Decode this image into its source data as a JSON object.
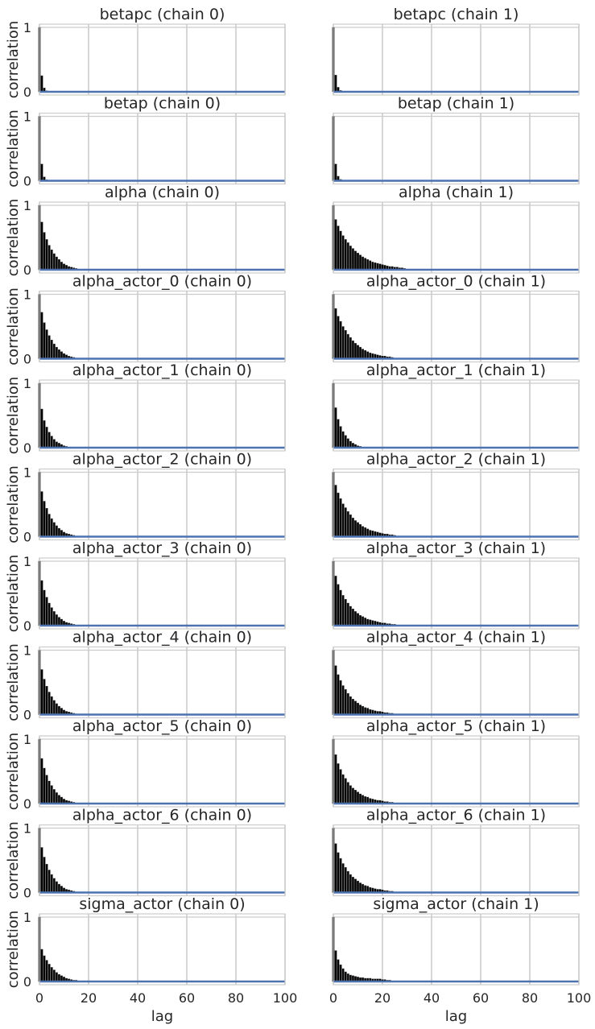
{
  "chart_data": {
    "type": "bar",
    "figure_kind": "autocorrelation grid",
    "rows": 11,
    "cols": 2,
    "xlabel": "lag",
    "ylabel": "correlation",
    "xlim": [
      0,
      100
    ],
    "ylim": [
      -0.05,
      1.05
    ],
    "xticks": [
      "0",
      "20",
      "40",
      "60",
      "80",
      "100"
    ],
    "yticks": [
      "0",
      "1"
    ],
    "grid": true,
    "bar_color": "#000000",
    "zero_line_color": "#4c72b0",
    "panels": [
      {
        "title": "betapc (chain 0)",
        "values": [
          1.0,
          0.25,
          0.06,
          0.015
        ]
      },
      {
        "title": "betapc (chain 1)",
        "values": [
          1.0,
          0.26,
          0.07,
          0.02
        ]
      },
      {
        "title": "betap (chain 0)",
        "values": [
          1.0,
          0.26,
          0.06,
          0.015
        ]
      },
      {
        "title": "betap (chain 1)",
        "values": [
          1.0,
          0.26,
          0.07,
          0.02
        ]
      },
      {
        "title": "alpha (chain 0)",
        "values": [
          1.0,
          0.74,
          0.58,
          0.47,
          0.38,
          0.31,
          0.25,
          0.2,
          0.16,
          0.12,
          0.09,
          0.07,
          0.05,
          0.04,
          0.03,
          0.02,
          0.01,
          0.01
        ]
      },
      {
        "title": "alpha (chain 1)",
        "values": [
          1.0,
          0.78,
          0.68,
          0.6,
          0.53,
          0.47,
          0.42,
          0.37,
          0.33,
          0.29,
          0.26,
          0.23,
          0.2,
          0.18,
          0.16,
          0.14,
          0.12,
          0.11,
          0.1,
          0.09,
          0.08,
          0.07,
          0.06,
          0.05,
          0.05,
          0.04,
          0.04,
          0.03,
          0.03,
          0.02
        ]
      },
      {
        "title": "alpha_actor_0 (chain 0)",
        "values": [
          1.0,
          0.72,
          0.56,
          0.45,
          0.36,
          0.29,
          0.23,
          0.18,
          0.14,
          0.11,
          0.08,
          0.06,
          0.04,
          0.03,
          0.02,
          0.01
        ]
      },
      {
        "title": "alpha_actor_0 (chain 1)",
        "values": [
          1.0,
          0.78,
          0.66,
          0.58,
          0.5,
          0.44,
          0.38,
          0.33,
          0.28,
          0.24,
          0.21,
          0.18,
          0.15,
          0.13,
          0.11,
          0.09,
          0.08,
          0.07,
          0.06,
          0.05,
          0.04,
          0.04,
          0.03,
          0.03,
          0.02
        ]
      },
      {
        "title": "alpha_actor_1 (chain 0)",
        "values": [
          1.0,
          0.6,
          0.42,
          0.32,
          0.24,
          0.18,
          0.13,
          0.09,
          0.07,
          0.05,
          0.03,
          0.02,
          0.01
        ]
      },
      {
        "title": "alpha_actor_1 (chain 1)",
        "values": [
          1.0,
          0.62,
          0.44,
          0.33,
          0.25,
          0.19,
          0.14,
          0.1,
          0.07,
          0.05,
          0.03,
          0.02,
          0.01
        ]
      },
      {
        "title": "alpha_actor_2 (chain 0)",
        "values": [
          1.0,
          0.7,
          0.55,
          0.44,
          0.35,
          0.28,
          0.22,
          0.17,
          0.13,
          0.1,
          0.07,
          0.05,
          0.04,
          0.03,
          0.02,
          0.01
        ]
      },
      {
        "title": "alpha_actor_2 (chain 1)",
        "values": [
          1.0,
          0.8,
          0.68,
          0.59,
          0.51,
          0.45,
          0.39,
          0.34,
          0.29,
          0.25,
          0.22,
          0.19,
          0.16,
          0.14,
          0.12,
          0.1,
          0.09,
          0.08,
          0.07,
          0.06,
          0.05,
          0.04,
          0.04,
          0.03,
          0.03,
          0.02
        ]
      },
      {
        "title": "alpha_actor_3 (chain 0)",
        "values": [
          1.0,
          0.7,
          0.55,
          0.44,
          0.35,
          0.28,
          0.22,
          0.17,
          0.13,
          0.1,
          0.07,
          0.05,
          0.04,
          0.03,
          0.02,
          0.01
        ]
      },
      {
        "title": "alpha_actor_3 (chain 1)",
        "values": [
          1.0,
          0.77,
          0.64,
          0.55,
          0.47,
          0.41,
          0.35,
          0.3,
          0.26,
          0.22,
          0.19,
          0.16,
          0.14,
          0.12,
          0.1,
          0.09,
          0.08,
          0.07,
          0.06,
          0.05,
          0.04,
          0.04,
          0.03,
          0.03,
          0.02,
          0.02
        ]
      },
      {
        "title": "alpha_actor_4 (chain 0)",
        "values": [
          1.0,
          0.7,
          0.55,
          0.44,
          0.35,
          0.28,
          0.22,
          0.17,
          0.13,
          0.1,
          0.07,
          0.05,
          0.04,
          0.03,
          0.02,
          0.01
        ]
      },
      {
        "title": "alpha_actor_4 (chain 1)",
        "values": [
          1.0,
          0.76,
          0.62,
          0.53,
          0.45,
          0.39,
          0.33,
          0.28,
          0.24,
          0.21,
          0.18,
          0.15,
          0.13,
          0.11,
          0.1,
          0.08,
          0.07,
          0.06,
          0.05,
          0.05,
          0.04,
          0.03,
          0.03,
          0.02,
          0.02
        ]
      },
      {
        "title": "alpha_actor_5 (chain 0)",
        "values": [
          1.0,
          0.7,
          0.55,
          0.44,
          0.35,
          0.28,
          0.22,
          0.17,
          0.13,
          0.1,
          0.07,
          0.05,
          0.04,
          0.03,
          0.02,
          0.01
        ]
      },
      {
        "title": "alpha_actor_5 (chain 1)",
        "values": [
          1.0,
          0.76,
          0.62,
          0.53,
          0.45,
          0.39,
          0.33,
          0.28,
          0.24,
          0.21,
          0.18,
          0.15,
          0.13,
          0.11,
          0.1,
          0.08,
          0.07,
          0.06,
          0.05,
          0.05,
          0.04,
          0.03,
          0.03,
          0.02,
          0.02
        ]
      },
      {
        "title": "alpha_actor_6 (chain 0)",
        "values": [
          1.0,
          0.7,
          0.55,
          0.44,
          0.35,
          0.28,
          0.22,
          0.17,
          0.13,
          0.1,
          0.07,
          0.05,
          0.04,
          0.03,
          0.02,
          0.01
        ]
      },
      {
        "title": "alpha_actor_6 (chain 1)",
        "values": [
          1.0,
          0.76,
          0.62,
          0.53,
          0.45,
          0.39,
          0.33,
          0.28,
          0.24,
          0.21,
          0.18,
          0.15,
          0.13,
          0.11,
          0.1,
          0.08,
          0.07,
          0.06,
          0.05,
          0.05,
          0.04,
          0.03,
          0.03,
          0.02,
          0.02
        ]
      },
      {
        "title": "sigma_actor (chain 0)",
        "values": [
          1.0,
          0.5,
          0.4,
          0.33,
          0.27,
          0.22,
          0.18,
          0.14,
          0.11,
          0.09,
          0.07,
          0.05,
          0.04,
          0.03,
          0.02,
          0.02,
          0.01
        ]
      },
      {
        "title": "sigma_actor (chain 1)",
        "values": [
          1.0,
          0.48,
          0.34,
          0.26,
          0.2,
          0.15,
          0.12,
          0.1,
          0.09,
          0.08,
          0.07,
          0.06,
          0.06,
          0.05,
          0.05,
          0.05,
          0.04,
          0.04,
          0.04,
          0.04,
          0.03,
          0.03,
          0.02,
          0.02
        ]
      }
    ]
  }
}
